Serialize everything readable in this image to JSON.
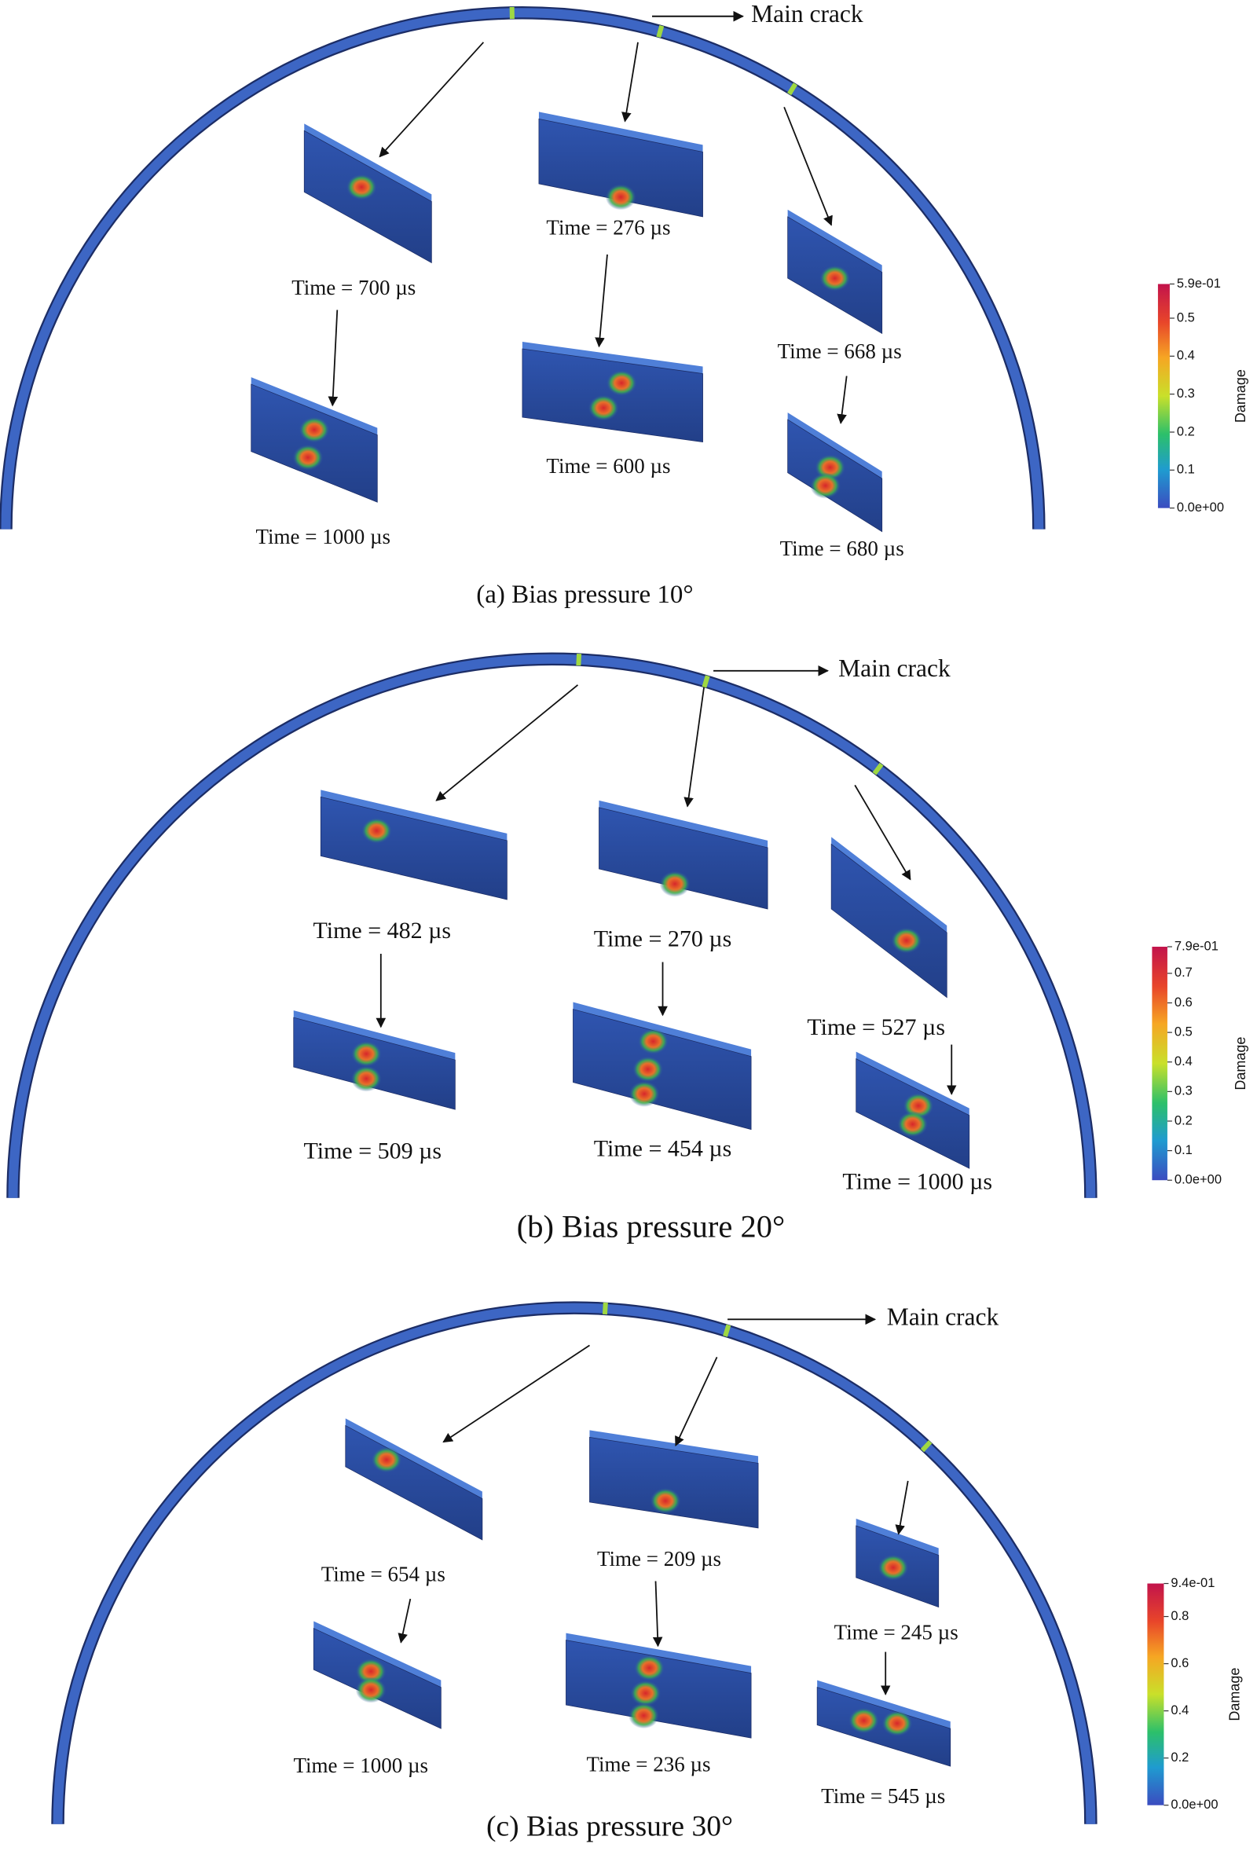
{
  "panels": [
    {
      "caption": "(a) Bias pressure 10°",
      "main_crack": "Main crack",
      "times": [
        "Time = 700 µs",
        "Time = 276 µs",
        "Time = 668 µs",
        "Time = 1000 µs",
        "Time = 600 µs",
        "Time = 680 µs"
      ],
      "colorbar": {
        "label": "Damage",
        "ticks": [
          "5.9e-01",
          "0.5",
          "0.4",
          "0.3",
          "0.2",
          "0.1",
          "0.0e+00"
        ]
      }
    },
    {
      "caption": "(b) Bias pressure 20°",
      "main_crack": "Main crack",
      "times": [
        "Time = 482 µs",
        "Time = 270 µs",
        "Time = 527 µs",
        "Time = 509 µs",
        "Time = 454 µs",
        "Time = 1000 µs"
      ],
      "colorbar": {
        "label": "Damage",
        "ticks": [
          "7.9e-01",
          "0.7",
          "0.6",
          "0.5",
          "0.4",
          "0.3",
          "0.2",
          "0.1",
          "0.0e+00"
        ]
      }
    },
    {
      "caption": "(c) Bias pressure 30°",
      "main_crack": "Main crack",
      "times": [
        "Time = 654 µs",
        "Time = 209 µs",
        "Time = 245 µs",
        "Time = 1000 µs",
        "Time = 236 µs",
        "Time = 545 µs"
      ],
      "colorbar": {
        "label": "Damage",
        "ticks": [
          "9.4e-01",
          "0.8",
          "0.6",
          "0.4",
          "0.2",
          "0.0e+00"
        ]
      }
    }
  ]
}
